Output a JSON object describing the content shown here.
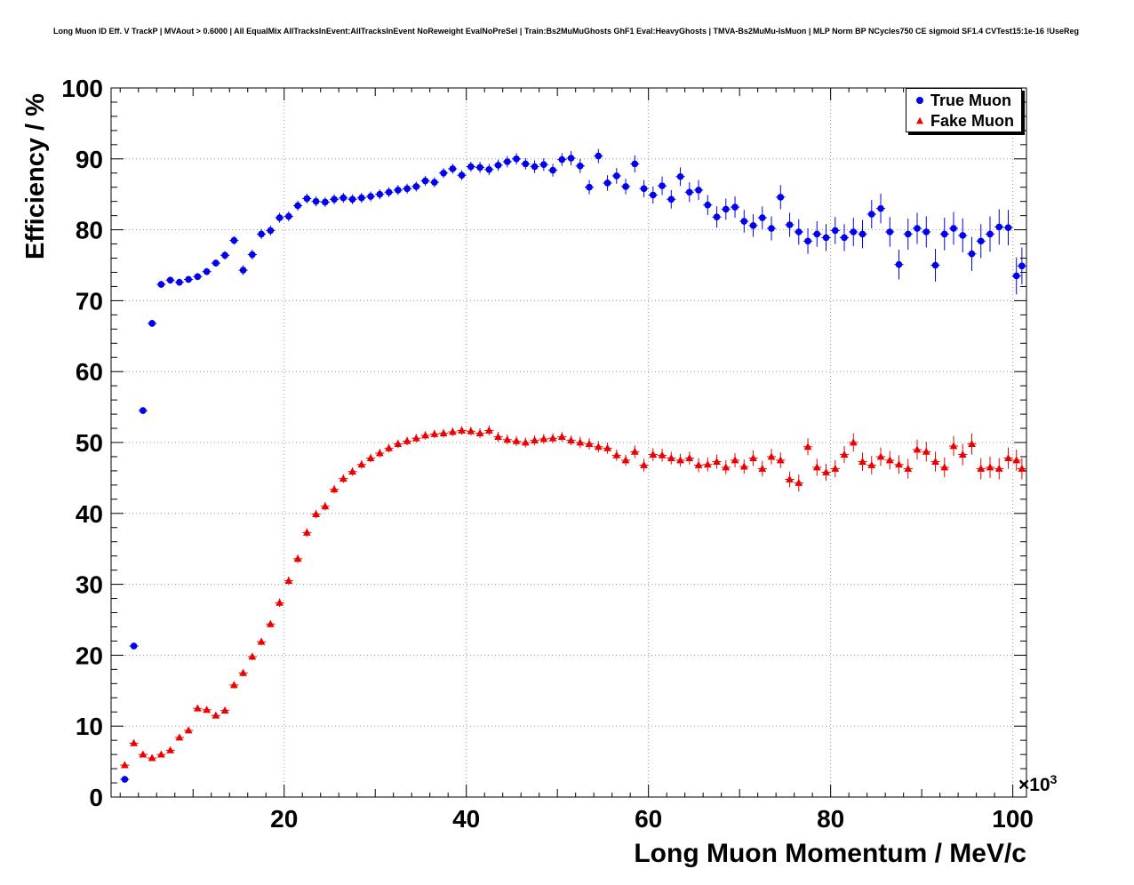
{
  "chart_data": {
    "type": "scatter",
    "title": "Long Muon ID Eff. V TrackP | MVAout > 0.6000 | All EqualMix AllTracksInEvent:AllTracksInEvent NoReweight EvalNoPreSel | Train:Bs2MuMuGhosts GhF1 Eval:HeavyGhosts | TMVA-Bs2MuMu-IsMuon | MLP Norm BP NCycles750 CE sigmoid SF1.4 CVTest15:1e-16 !UseReg",
    "xlabel": "Long Muon Momentum / MeV/c",
    "ylabel": "Efficiency / %",
    "x_scale_prefix": "×10",
    "x_scale_exp": "3",
    "xlim": [
      1,
      101.5
    ],
    "ylim": [
      0,
      100
    ],
    "x_ticks": [
      20,
      40,
      60,
      80,
      100
    ],
    "y_ticks": [
      0,
      10,
      20,
      30,
      40,
      50,
      60,
      70,
      80,
      90,
      100
    ],
    "x_major_step": 20,
    "x_minor_step": 2,
    "y_major_step": 10,
    "y_minor_step": 2,
    "grid": true,
    "grid_color": "#999999",
    "legend_position": "top-right",
    "series": [
      {
        "name": "True Muon",
        "color": "#0000ee",
        "marker": "circle",
        "xerr": 0.5,
        "points": [
          [
            2.5,
            2.5,
            0.3
          ],
          [
            3.5,
            21.3,
            0.4
          ],
          [
            4.5,
            54.5,
            0.5
          ],
          [
            5.5,
            66.8,
            0.5
          ],
          [
            6.5,
            72.3,
            0.5
          ],
          [
            7.5,
            72.9,
            0.5
          ],
          [
            8.5,
            72.6,
            0.5
          ],
          [
            9.5,
            73.0,
            0.5
          ],
          [
            10.5,
            73.4,
            0.5
          ],
          [
            11.5,
            74.1,
            0.5
          ],
          [
            12.5,
            75.3,
            0.5
          ],
          [
            13.5,
            76.4,
            0.6
          ],
          [
            14.5,
            78.5,
            0.6
          ],
          [
            15.5,
            74.3,
            0.7
          ],
          [
            16.5,
            76.5,
            0.7
          ],
          [
            17.5,
            79.4,
            0.7
          ],
          [
            18.5,
            79.9,
            0.7
          ],
          [
            19.5,
            81.7,
            0.7
          ],
          [
            20.5,
            81.9,
            0.7
          ],
          [
            21.5,
            83.4,
            0.7
          ],
          [
            22.5,
            84.4,
            0.7
          ],
          [
            23.5,
            84.0,
            0.7
          ],
          [
            24.5,
            83.9,
            0.7
          ],
          [
            25.5,
            84.3,
            0.7
          ],
          [
            26.5,
            84.5,
            0.7
          ],
          [
            27.5,
            84.3,
            0.7
          ],
          [
            28.5,
            84.5,
            0.7
          ],
          [
            29.5,
            84.7,
            0.7
          ],
          [
            30.5,
            85.0,
            0.7
          ],
          [
            31.5,
            85.3,
            0.7
          ],
          [
            32.5,
            85.6,
            0.7
          ],
          [
            33.5,
            85.8,
            0.7
          ],
          [
            34.5,
            86.1,
            0.7
          ],
          [
            35.5,
            86.9,
            0.7
          ],
          [
            36.5,
            86.7,
            0.7
          ],
          [
            37.5,
            88.0,
            0.7
          ],
          [
            38.5,
            88.6,
            0.7
          ],
          [
            39.5,
            87.7,
            0.7
          ],
          [
            40.5,
            88.9,
            0.7
          ],
          [
            41.5,
            88.8,
            0.8
          ],
          [
            42.5,
            88.5,
            0.8
          ],
          [
            43.5,
            89.1,
            0.8
          ],
          [
            44.5,
            89.6,
            0.8
          ],
          [
            45.5,
            90.0,
            0.8
          ],
          [
            46.5,
            89.3,
            0.8
          ],
          [
            47.5,
            88.9,
            0.9
          ],
          [
            48.5,
            89.2,
            0.9
          ],
          [
            49.5,
            88.4,
            0.9
          ],
          [
            50.5,
            89.9,
            0.9
          ],
          [
            51.5,
            90.1,
            1.0
          ],
          [
            52.5,
            89.0,
            1.0
          ],
          [
            53.5,
            86.0,
            1.0
          ],
          [
            54.5,
            90.4,
            1.0
          ],
          [
            55.5,
            86.6,
            1.1
          ],
          [
            56.5,
            87.6,
            1.1
          ],
          [
            57.5,
            86.1,
            1.1
          ],
          [
            58.5,
            89.3,
            1.2
          ],
          [
            59.5,
            85.8,
            1.2
          ],
          [
            60.5,
            84.9,
            1.2
          ],
          [
            61.5,
            86.2,
            1.3
          ],
          [
            62.5,
            84.3,
            1.3
          ],
          [
            63.5,
            87.5,
            1.3
          ],
          [
            64.5,
            85.3,
            1.4
          ],
          [
            65.5,
            85.6,
            1.4
          ],
          [
            66.5,
            83.5,
            1.4
          ],
          [
            67.5,
            81.8,
            1.5
          ],
          [
            68.5,
            82.9,
            1.5
          ],
          [
            69.5,
            83.2,
            1.5
          ],
          [
            70.5,
            81.2,
            1.6
          ],
          [
            71.5,
            80.6,
            1.6
          ],
          [
            72.5,
            81.7,
            1.6
          ],
          [
            73.5,
            80.2,
            1.7
          ],
          [
            74.5,
            84.6,
            1.7
          ],
          [
            75.5,
            80.7,
            1.7
          ],
          [
            76.5,
            79.7,
            1.8
          ],
          [
            77.5,
            78.4,
            1.8
          ],
          [
            78.5,
            79.4,
            1.8
          ],
          [
            79.5,
            78.9,
            1.9
          ],
          [
            80.5,
            79.9,
            1.9
          ],
          [
            81.5,
            78.9,
            1.9
          ],
          [
            82.5,
            79.7,
            2.0
          ],
          [
            83.5,
            79.4,
            2.0
          ],
          [
            84.5,
            82.2,
            2.0
          ],
          [
            85.5,
            83.0,
            2.1
          ],
          [
            86.5,
            79.7,
            2.1
          ],
          [
            87.5,
            75.1,
            2.1
          ],
          [
            88.5,
            79.4,
            2.2
          ],
          [
            89.5,
            80.2,
            2.2
          ],
          [
            90.5,
            79.7,
            2.2
          ],
          [
            91.5,
            75.0,
            2.3
          ],
          [
            92.5,
            79.4,
            2.3
          ],
          [
            93.5,
            80.2,
            2.3
          ],
          [
            94.5,
            79.2,
            2.4
          ],
          [
            95.5,
            76.6,
            2.4
          ],
          [
            96.5,
            78.4,
            2.4
          ],
          [
            97.5,
            79.4,
            2.5
          ],
          [
            98.5,
            80.4,
            2.5
          ],
          [
            99.5,
            80.3,
            2.5
          ],
          [
            100.4,
            73.5,
            2.6
          ],
          [
            101.0,
            74.9,
            2.6
          ]
        ]
      },
      {
        "name": "Fake Muon",
        "color": "#ee0000",
        "marker": "triangle",
        "xerr": 0.5,
        "points": [
          [
            2.5,
            4.5,
            0.4
          ],
          [
            3.5,
            7.6,
            0.3
          ],
          [
            4.5,
            6.0,
            0.3
          ],
          [
            5.5,
            5.5,
            0.3
          ],
          [
            6.5,
            6.0,
            0.3
          ],
          [
            7.5,
            6.6,
            0.3
          ],
          [
            8.5,
            8.4,
            0.3
          ],
          [
            9.5,
            9.4,
            0.4
          ],
          [
            10.5,
            12.5,
            0.4
          ],
          [
            11.5,
            12.3,
            0.4
          ],
          [
            12.5,
            11.5,
            0.4
          ],
          [
            13.5,
            12.2,
            0.4
          ],
          [
            14.5,
            15.8,
            0.5
          ],
          [
            15.5,
            17.5,
            0.5
          ],
          [
            16.5,
            19.8,
            0.5
          ],
          [
            17.5,
            21.9,
            0.5
          ],
          [
            18.5,
            24.4,
            0.5
          ],
          [
            19.5,
            27.4,
            0.6
          ],
          [
            20.5,
            30.5,
            0.6
          ],
          [
            21.5,
            33.6,
            0.6
          ],
          [
            22.5,
            37.3,
            0.6
          ],
          [
            23.5,
            39.9,
            0.6
          ],
          [
            24.5,
            41.0,
            0.6
          ],
          [
            25.5,
            43.4,
            0.6
          ],
          [
            26.5,
            44.9,
            0.6
          ],
          [
            27.5,
            45.9,
            0.6
          ],
          [
            28.5,
            46.9,
            0.6
          ],
          [
            29.5,
            47.8,
            0.6
          ],
          [
            30.5,
            48.5,
            0.6
          ],
          [
            31.5,
            49.2,
            0.6
          ],
          [
            32.5,
            49.8,
            0.6
          ],
          [
            33.5,
            50.2,
            0.6
          ],
          [
            34.5,
            50.6,
            0.6
          ],
          [
            35.5,
            51.0,
            0.6
          ],
          [
            36.5,
            51.2,
            0.6
          ],
          [
            37.5,
            51.3,
            0.6
          ],
          [
            38.5,
            51.5,
            0.6
          ],
          [
            39.5,
            51.7,
            0.6
          ],
          [
            40.5,
            51.6,
            0.6
          ],
          [
            41.5,
            51.3,
            0.7
          ],
          [
            42.5,
            51.7,
            0.7
          ],
          [
            43.5,
            50.8,
            0.7
          ],
          [
            44.5,
            50.4,
            0.7
          ],
          [
            45.5,
            50.2,
            0.7
          ],
          [
            46.5,
            50.0,
            0.7
          ],
          [
            47.5,
            50.3,
            0.7
          ],
          [
            48.5,
            50.5,
            0.7
          ],
          [
            49.5,
            50.6,
            0.7
          ],
          [
            50.5,
            50.8,
            0.7
          ],
          [
            51.5,
            50.3,
            0.7
          ],
          [
            52.5,
            50.0,
            0.8
          ],
          [
            53.5,
            49.8,
            0.8
          ],
          [
            54.5,
            49.4,
            0.8
          ],
          [
            55.5,
            49.2,
            0.8
          ],
          [
            56.5,
            48.2,
            0.8
          ],
          [
            57.5,
            47.5,
            0.8
          ],
          [
            58.5,
            48.7,
            0.9
          ],
          [
            59.5,
            46.8,
            0.9
          ],
          [
            60.5,
            48.3,
            0.9
          ],
          [
            61.5,
            48.2,
            0.9
          ],
          [
            62.5,
            47.8,
            0.9
          ],
          [
            63.5,
            47.5,
            0.9
          ],
          [
            64.5,
            47.8,
            0.9
          ],
          [
            65.5,
            46.8,
            1.0
          ],
          [
            66.5,
            46.9,
            1.0
          ],
          [
            67.5,
            47.3,
            1.0
          ],
          [
            68.5,
            46.5,
            1.0
          ],
          [
            69.5,
            47.5,
            1.0
          ],
          [
            70.5,
            46.6,
            1.0
          ],
          [
            71.5,
            47.8,
            1.1
          ],
          [
            72.5,
            46.3,
            1.1
          ],
          [
            73.5,
            48.0,
            1.1
          ],
          [
            74.5,
            47.5,
            1.1
          ],
          [
            75.5,
            44.8,
            1.1
          ],
          [
            76.5,
            44.3,
            1.2
          ],
          [
            77.5,
            49.4,
            1.2
          ],
          [
            78.5,
            46.5,
            1.2
          ],
          [
            79.5,
            45.8,
            1.2
          ],
          [
            80.5,
            46.3,
            1.2
          ],
          [
            81.5,
            48.3,
            1.2
          ],
          [
            82.5,
            50.0,
            1.3
          ],
          [
            83.5,
            47.3,
            1.3
          ],
          [
            84.5,
            46.8,
            1.3
          ],
          [
            85.5,
            48.0,
            1.3
          ],
          [
            86.5,
            47.5,
            1.3
          ],
          [
            87.5,
            46.9,
            1.3
          ],
          [
            88.5,
            46.3,
            1.4
          ],
          [
            89.5,
            49.0,
            1.4
          ],
          [
            90.5,
            48.7,
            1.4
          ],
          [
            91.5,
            47.3,
            1.4
          ],
          [
            92.5,
            46.5,
            1.4
          ],
          [
            93.5,
            49.5,
            1.4
          ],
          [
            94.5,
            48.3,
            1.5
          ],
          [
            95.5,
            49.8,
            1.5
          ],
          [
            96.5,
            46.3,
            1.5
          ],
          [
            97.5,
            46.5,
            1.5
          ],
          [
            98.5,
            46.3,
            1.5
          ],
          [
            99.5,
            47.8,
            1.5
          ],
          [
            100.4,
            47.5,
            1.5
          ],
          [
            101.0,
            46.3,
            1.5
          ]
        ]
      }
    ]
  }
}
